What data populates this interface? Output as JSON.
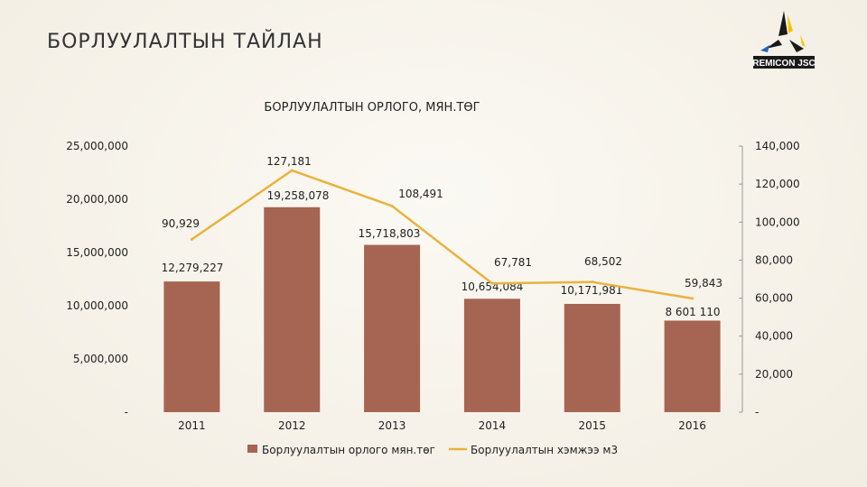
{
  "slide": {
    "title": "БОРЛУУЛАЛТЫН ТАЙЛАН"
  },
  "logo": {
    "text": "REMICON JSC"
  },
  "colors": {
    "bar": "#a66452",
    "line": "#e8b33e",
    "logo_dark": "#1a1a1a",
    "logo_yellow": "#f5c400",
    "logo_blue": "#2a63b8"
  },
  "chart_data": {
    "type": "bar",
    "title": "БОРЛУУЛАЛТЫН ОРЛОГО, МЯН.ТӨГ",
    "categories": [
      "2011",
      "2012",
      "2013",
      "2014",
      "2015",
      "2016"
    ],
    "series": [
      {
        "name": "Борлуулалтын орлого мян.төг",
        "type": "bar",
        "axis": "left",
        "values": [
          12279227,
          19258078,
          15718803,
          10654084,
          10171981,
          8601110
        ],
        "labels": [
          "12,279,227",
          "19,258,078",
          "15,718,803",
          "10,654,084",
          "10,171,981",
          "8 601 110"
        ]
      },
      {
        "name": "Борлуулалтын хэмжээ м3",
        "type": "line",
        "axis": "right",
        "values": [
          90929,
          127181,
          108491,
          67781,
          68502,
          59843
        ],
        "labels": [
          "90,929",
          "127,181",
          "108,491",
          "67,781",
          "68,502",
          "59,843"
        ]
      }
    ],
    "y_left": {
      "min": 0,
      "max": 25000000,
      "ticks": [
        "-",
        "5,000,000",
        "10,000,000",
        "15,000,000",
        "20,000,000",
        "25,000,000"
      ]
    },
    "y_right": {
      "min": 0,
      "max": 140000,
      "ticks": [
        "-",
        "20,000",
        "40,000",
        "60,000",
        "80,000",
        "100,000",
        "120,000",
        "140,000"
      ]
    },
    "grid": false,
    "legend": "bottom"
  }
}
